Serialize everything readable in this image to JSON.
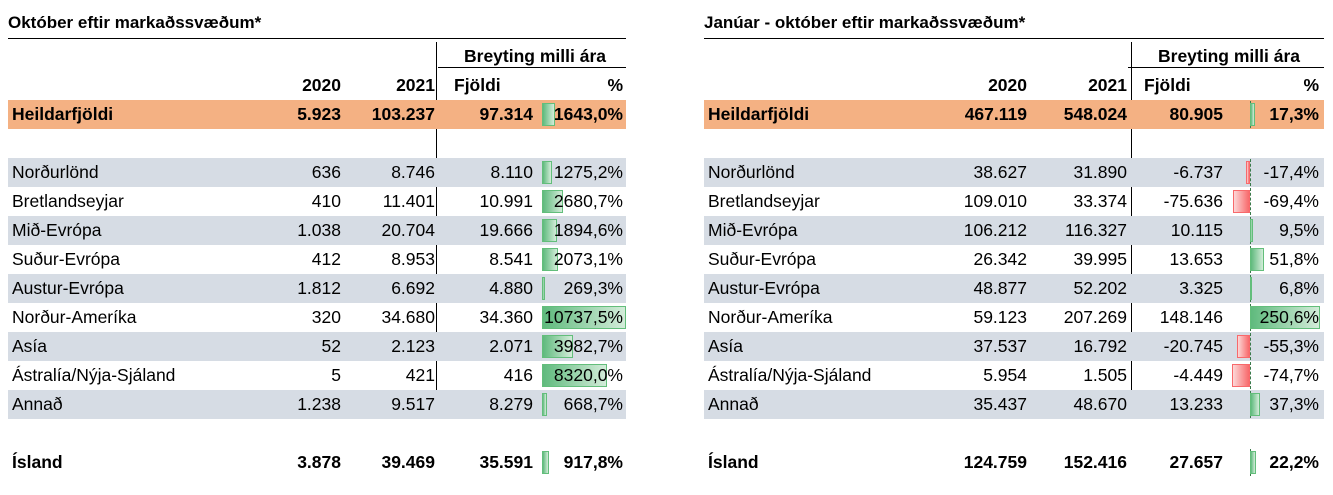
{
  "tables": [
    {
      "title": "Október eftir markaðssvæðum*",
      "group_header": "Breyting milli ára",
      "columns": [
        "2020",
        "2021",
        "Fjöldi",
        "%"
      ],
      "total": {
        "label": "Heildarfjöldi",
        "y2020": "5.923",
        "y2021": "103.237",
        "change": "97.314",
        "pct": "1643,0%",
        "pct_value": 1643.0
      },
      "rows": [
        {
          "label": "Norðurlönd",
          "y2020": "636",
          "y2021": "8.746",
          "change": "8.110",
          "pct": "1275,2%",
          "pct_value": 1275.2
        },
        {
          "label": "Bretlandseyjar",
          "y2020": "410",
          "y2021": "11.401",
          "change": "10.991",
          "pct": "2680,7%",
          "pct_value": 2680.7
        },
        {
          "label": "Mið-Evrópa",
          "y2020": "1.038",
          "y2021": "20.704",
          "change": "19.666",
          "pct": "1894,6%",
          "pct_value": 1894.6
        },
        {
          "label": "Suður-Evrópa",
          "y2020": "412",
          "y2021": "8.953",
          "change": "8.541",
          "pct": "2073,1%",
          "pct_value": 2073.1
        },
        {
          "label": "Austur-Evrópa",
          "y2020": "1.812",
          "y2021": "6.692",
          "change": "4.880",
          "pct": "269,3%",
          "pct_value": 269.3
        },
        {
          "label": "Norður-Ameríka",
          "y2020": "320",
          "y2021": "34.680",
          "change": "34.360",
          "pct": "10737,5%",
          "pct_value": 10737.5
        },
        {
          "label": "Asía",
          "y2020": "52",
          "y2021": "2.123",
          "change": "2.071",
          "pct": "3982,7%",
          "pct_value": 3982.7
        },
        {
          "label": "Ástralía/Nýja-Sjáland",
          "y2020": "5",
          "y2021": "421",
          "change": "416",
          "pct": "8320,0%",
          "pct_value": 8320.0
        },
        {
          "label": "Annað",
          "y2020": "1.238",
          "y2021": "9.517",
          "change": "8.279",
          "pct": "668,7%",
          "pct_value": 668.7
        }
      ],
      "iceland": {
        "label": "Ísland",
        "y2020": "3.878",
        "y2021": "39.469",
        "change": "35.591",
        "pct": "917,8%",
        "pct_value": 917.8
      }
    },
    {
      "title": "Janúar - október eftir markaðssvæðum*",
      "group_header": "Breyting milli ára",
      "columns": [
        "2020",
        "2021",
        "Fjöldi",
        "%"
      ],
      "total": {
        "label": "Heildarfjöldi",
        "y2020": "467.119",
        "y2021": "548.024",
        "change": "80.905",
        "pct": "17,3%",
        "pct_value": 17.3
      },
      "rows": [
        {
          "label": "Norðurlönd",
          "y2020": "38.627",
          "y2021": "31.890",
          "change": "-6.737",
          "pct": "-17,4%",
          "pct_value": -17.4
        },
        {
          "label": "Bretlandseyjar",
          "y2020": "109.010",
          "y2021": "33.374",
          "change": "-75.636",
          "pct": "-69,4%",
          "pct_value": -69.4
        },
        {
          "label": "Mið-Evrópa",
          "y2020": "106.212",
          "y2021": "116.327",
          "change": "10.115",
          "pct": "9,5%",
          "pct_value": 9.5
        },
        {
          "label": "Suður-Evrópa",
          "y2020": "26.342",
          "y2021": "39.995",
          "change": "13.653",
          "pct": "51,8%",
          "pct_value": 51.8
        },
        {
          "label": "Austur-Evrópa",
          "y2020": "48.877",
          "y2021": "52.202",
          "change": "3.325",
          "pct": "6,8%",
          "pct_value": 6.8
        },
        {
          "label": "Norður-Ameríka",
          "y2020": "59.123",
          "y2021": "207.269",
          "change": "148.146",
          "pct": "250,6%",
          "pct_value": 250.6
        },
        {
          "label": "Asía",
          "y2020": "37.537",
          "y2021": "16.792",
          "change": "-20.745",
          "pct": "-55,3%",
          "pct_value": -55.3
        },
        {
          "label": "Ástralía/Nýja-Sjáland",
          "y2020": "5.954",
          "y2021": "1.505",
          "change": "-4.449",
          "pct": "-74,7%",
          "pct_value": -74.7
        },
        {
          "label": "Annað",
          "y2020": "35.437",
          "y2021": "48.670",
          "change": "13.233",
          "pct": "37,3%",
          "pct_value": 37.3
        }
      ],
      "iceland": {
        "label": "Ísland",
        "y2020": "124.759",
        "y2021": "152.416",
        "change": "27.657",
        "pct": "22,2%",
        "pct_value": 22.2
      }
    }
  ],
  "colors": {
    "total_row": "#f4b183",
    "shaded_row": "#d6dce4",
    "positive_bar": "#63be7b",
    "negative_bar": "#f8696b"
  }
}
